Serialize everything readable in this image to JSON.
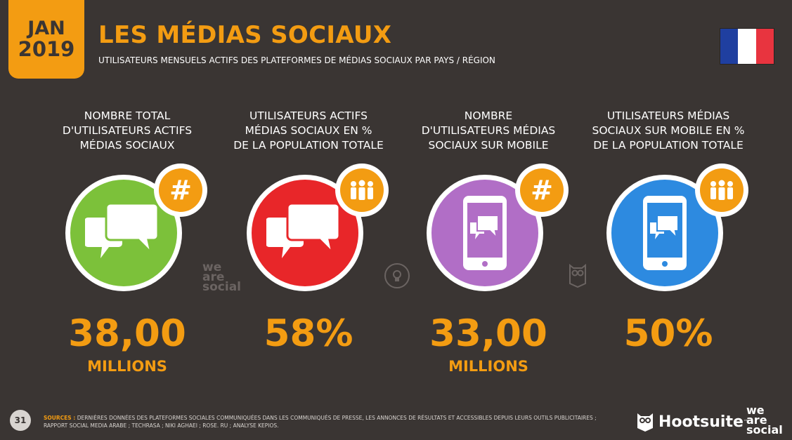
{
  "header": {
    "month": "JAN",
    "year": "2019",
    "title": "LES MÉDIAS SOCIAUX",
    "subtitle": "UTILISATEURS MENSUELS ACTIFS DES PLATEFORMES DE MÉDIAS SOCIAUX PAR PAYS / RÉGION",
    "flag_colors": [
      "#1f3fa0",
      "#ffffff",
      "#e8343f"
    ]
  },
  "stats": [
    {
      "label_lines": [
        "NOMBRE TOTAL",
        "D'UTILISATEURS ACTIFS",
        "MÉDIAS SOCIAUX"
      ],
      "value": "38,00",
      "unit": "MILLIONS",
      "color": "#7cc13a",
      "icon": "speech-bubbles-icon",
      "badge": "hashtag-icon"
    },
    {
      "label_lines": [
        "UTILISATEURS ACTIFS",
        "MÉDIAS SOCIAUX EN %",
        "DE LA POPULATION TOTALE"
      ],
      "value": "58%",
      "unit": "",
      "color": "#e82629",
      "icon": "speech-bubbles-icon",
      "badge": "people-icon"
    },
    {
      "label_lines": [
        "NOMBRE",
        "D'UTILISATEURS MÉDIAS",
        "SOCIAUX SUR MOBILE"
      ],
      "value": "33,00",
      "unit": "MILLIONS",
      "color": "#b16ec6",
      "icon": "mobile-chat-icon",
      "badge": "hashtag-icon"
    },
    {
      "label_lines": [
        "UTILISATEURS MÉDIAS",
        "SOCIAUX SUR MOBILE EN %",
        "DE LA POPULATION TOTALE"
      ],
      "value": "50%",
      "unit": "",
      "color": "#2d8ae0",
      "icon": "mobile-chat-icon",
      "badge": "people-icon"
    }
  ],
  "watermark": {
    "we": "we",
    "are": "are",
    "social": "social"
  },
  "footer": {
    "page": "31",
    "sources_label": "SOURCES :",
    "sources_text": "DERNIÈRES DONNÉES DES PLATEFORMES SOCIALES COMMUNIQUÉES DANS LES COMMUNIQUÉS DE PRESSE, LES ANNONCES DE RÉSULTATS ET ACCESSIBLES DEPUIS LEURS OUTILS PUBLICITAIRES ; RAPPORT SOCIAL MEDIA ARABE ; TECHRASA ; NIKI AGHAEI ; ROSE. RU ; ANALYSE KEPIOS.",
    "hootsuite": "Hootsuite",
    "tm": "™"
  }
}
